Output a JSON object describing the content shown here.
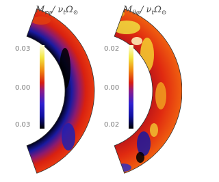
{
  "panels": [
    {
      "title": {
        "main": "M",
        "main_sub": "rφ",
        "divider": "/ ν",
        "divider_sub": "t",
        "omega": "Ω",
        "omega_sub": "⊙"
      },
      "colorbar": {
        "ticks": [
          "0.03",
          "0.00",
          "0.03"
        ]
      }
    },
    {
      "title": {
        "main": "M",
        "main_sub": "θφ",
        "divider": "/ ν",
        "divider_sub": "t",
        "omega": "Ω",
        "omega_sub": "⊙"
      },
      "colorbar": {
        "ticks": [
          "0.02",
          "0.00",
          "0.02"
        ]
      }
    }
  ]
}
